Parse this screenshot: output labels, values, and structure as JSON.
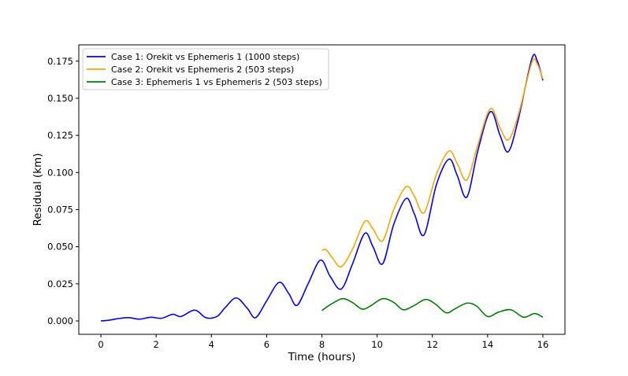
{
  "chart_data": {
    "type": "line",
    "title": "",
    "xlabel": "Time (hours)",
    "ylabel": "Residual (km)",
    "xlim": [
      -0.8,
      16.8
    ],
    "ylim": [
      -0.009,
      0.186
    ],
    "xticks": [
      0,
      2,
      4,
      6,
      8,
      10,
      12,
      14,
      16
    ],
    "yticks": [
      0.0,
      0.025,
      0.05,
      0.075,
      0.1,
      0.125,
      0.15,
      0.175
    ],
    "xtick_labels": [
      "0",
      "2",
      "4",
      "6",
      "8",
      "10",
      "12",
      "14",
      "16"
    ],
    "ytick_labels": [
      "0.000",
      "0.025",
      "0.050",
      "0.075",
      "0.100",
      "0.125",
      "0.150",
      "0.175"
    ],
    "grid": false,
    "legend_position": "top-left",
    "series": [
      {
        "name": "Case 1: Orekit vs Ephemeris 1 (1000 steps)",
        "color": "#0000ff",
        "points": [
          [
            0.0,
            0.0
          ],
          [
            0.3,
            0.0005
          ],
          [
            0.6,
            0.0015
          ],
          [
            1.0,
            0.0022
          ],
          [
            1.4,
            0.0012
          ],
          [
            1.8,
            0.0025
          ],
          [
            2.2,
            0.0018
          ],
          [
            2.6,
            0.0045
          ],
          [
            2.9,
            0.003
          ],
          [
            3.4,
            0.0073
          ],
          [
            3.8,
            0.0022
          ],
          [
            4.2,
            0.003
          ],
          [
            4.5,
            0.009
          ],
          [
            4.9,
            0.0155
          ],
          [
            5.3,
            0.0085
          ],
          [
            5.6,
            0.0022
          ],
          [
            6.0,
            0.0135
          ],
          [
            6.45,
            0.026
          ],
          [
            6.8,
            0.0185
          ],
          [
            7.1,
            0.0105
          ],
          [
            7.5,
            0.025
          ],
          [
            7.95,
            0.041
          ],
          [
            8.3,
            0.03
          ],
          [
            8.7,
            0.0215
          ],
          [
            9.1,
            0.038
          ],
          [
            9.55,
            0.059
          ],
          [
            9.85,
            0.05
          ],
          [
            10.2,
            0.0385
          ],
          [
            10.6,
            0.065
          ],
          [
            11.05,
            0.0825
          ],
          [
            11.35,
            0.072
          ],
          [
            11.7,
            0.058
          ],
          [
            12.15,
            0.092
          ],
          [
            12.6,
            0.109
          ],
          [
            12.9,
            0.098
          ],
          [
            13.25,
            0.0835
          ],
          [
            13.65,
            0.115
          ],
          [
            14.1,
            0.141
          ],
          [
            14.45,
            0.125
          ],
          [
            14.75,
            0.114
          ],
          [
            15.1,
            0.135
          ],
          [
            15.6,
            0.1765
          ],
          [
            15.8,
            0.175
          ],
          [
            16.0,
            0.162
          ]
        ]
      },
      {
        "name": "Case 2: Orekit vs Ephemeris 2 (503 steps)",
        "color": "#ffa500",
        "points": [
          [
            8.0,
            0.0475
          ],
          [
            8.15,
            0.048
          ],
          [
            8.4,
            0.042
          ],
          [
            8.7,
            0.0365
          ],
          [
            9.1,
            0.048
          ],
          [
            9.55,
            0.067
          ],
          [
            9.85,
            0.062
          ],
          [
            10.2,
            0.054
          ],
          [
            10.6,
            0.075
          ],
          [
            11.05,
            0.0905
          ],
          [
            11.35,
            0.084
          ],
          [
            11.7,
            0.073
          ],
          [
            12.15,
            0.099
          ],
          [
            12.6,
            0.1145
          ],
          [
            12.9,
            0.106
          ],
          [
            13.25,
            0.095
          ],
          [
            13.65,
            0.119
          ],
          [
            14.1,
            0.143
          ],
          [
            14.45,
            0.13
          ],
          [
            14.75,
            0.122
          ],
          [
            15.1,
            0.138
          ],
          [
            15.6,
            0.174
          ],
          [
            15.8,
            0.173
          ],
          [
            16.0,
            0.163
          ]
        ]
      },
      {
        "name": "Case 3: Ephemeris 1 vs Ephemeris 2 (503 steps)",
        "color": "#008000",
        "points": [
          [
            8.0,
            0.007
          ],
          [
            8.35,
            0.0115
          ],
          [
            8.75,
            0.015
          ],
          [
            9.1,
            0.0125
          ],
          [
            9.45,
            0.008
          ],
          [
            9.75,
            0.01
          ],
          [
            10.2,
            0.015
          ],
          [
            10.6,
            0.0125
          ],
          [
            10.95,
            0.0075
          ],
          [
            11.35,
            0.0105
          ],
          [
            11.75,
            0.0145
          ],
          [
            12.1,
            0.0115
          ],
          [
            12.5,
            0.0055
          ],
          [
            12.8,
            0.008
          ],
          [
            13.25,
            0.012
          ],
          [
            13.6,
            0.01
          ],
          [
            14.0,
            0.003
          ],
          [
            14.4,
            0.006
          ],
          [
            14.85,
            0.0075
          ],
          [
            15.3,
            0.0025
          ],
          [
            15.7,
            0.005
          ],
          [
            16.0,
            0.0025
          ]
        ]
      }
    ]
  }
}
